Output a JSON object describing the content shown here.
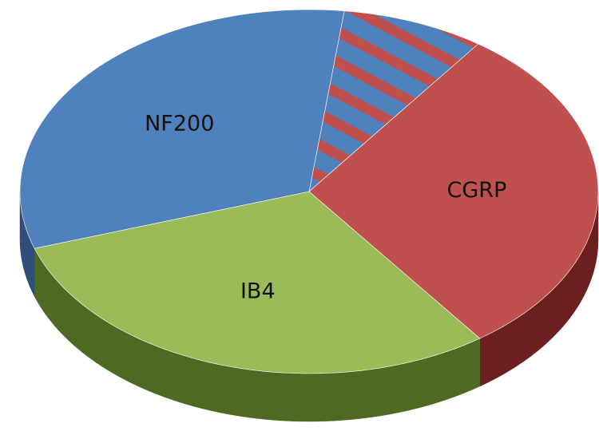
{
  "chart_data": {
    "type": "pie",
    "categories": [
      null,
      "CGRP",
      "IB4",
      "NF200"
    ],
    "values": [
      8,
      30,
      30,
      32
    ],
    "colors": [
      "#4f81bd",
      "#c0504d",
      "#9bbb59",
      "#4f81bd"
    ],
    "side_colors": [
      "#8b2f2d",
      "#6b1f1e",
      "#4e6a22",
      "#2f4f7a"
    ],
    "hatched": [
      true,
      false,
      false,
      false
    ],
    "hatch_color": "#c0504d"
  }
}
